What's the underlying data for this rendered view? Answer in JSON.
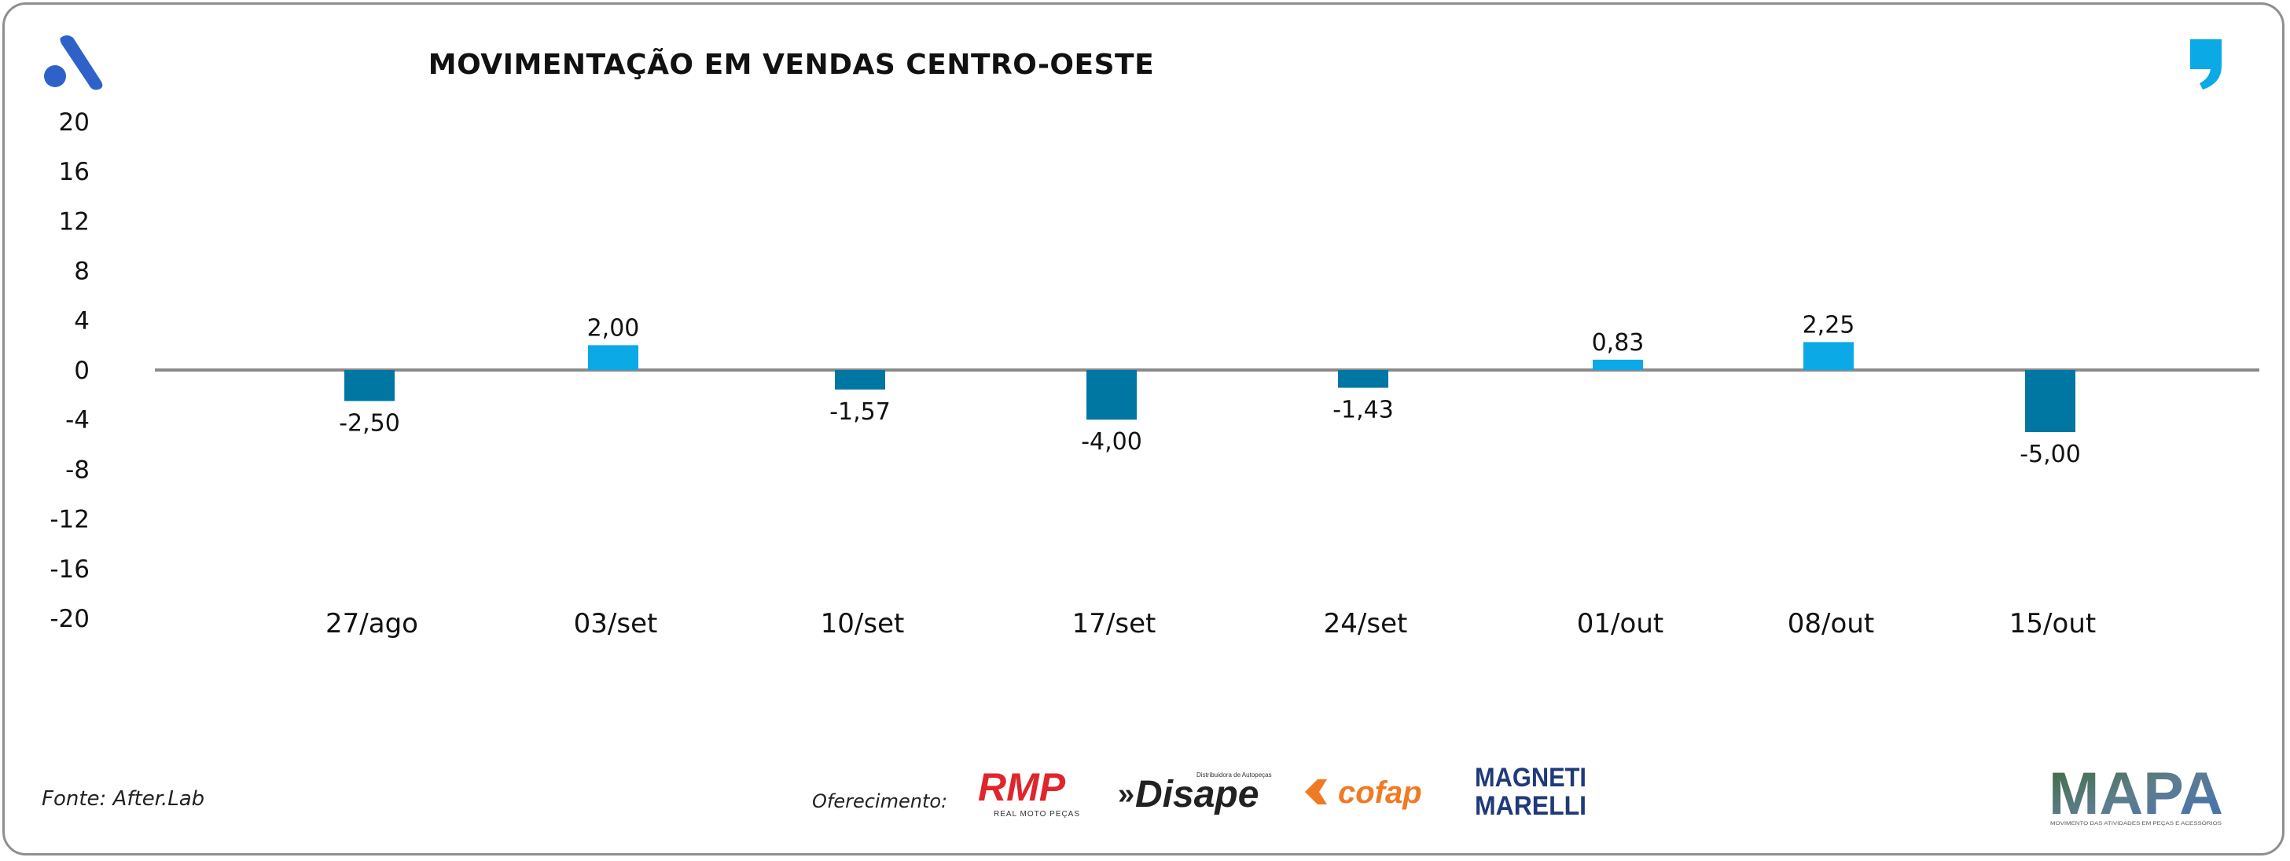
{
  "header": {
    "title": "MOVIMENTAÇÃO EM VENDAS CENTRO-OESTE"
  },
  "chart_data": {
    "type": "bar",
    "title": "MOVIMENTAÇÃO EM VENDAS CENTRO-OESTE",
    "xlabel": "",
    "ylabel": "",
    "ylim": [
      -20,
      20
    ],
    "yticks": [
      20,
      16,
      12,
      8,
      4,
      0,
      -4,
      -8,
      -12,
      -16,
      -20
    ],
    "categories": [
      "27/ago",
      "03/set",
      "10/set",
      "17/set",
      "24/set",
      "01/out",
      "08/out",
      "15/out"
    ],
    "values": [
      -2.5,
      2.0,
      -1.57,
      -4.0,
      -1.43,
      0.83,
      2.25,
      -5.0
    ],
    "data_labels": [
      "-2,50",
      "2,00",
      "-1,57",
      "-4,00",
      "-1,43",
      "0,83",
      "2,25",
      "-5,00"
    ],
    "colors": {
      "positive": "#0ba9e6",
      "negative": "#0077a3",
      "axis": "#8a8a8a"
    },
    "grid": false,
    "legend": "none"
  },
  "footer": {
    "source": "Fonte: After.Lab",
    "sponsor_label": "Oferecimento:",
    "sponsors": [
      "RMP",
      "REAL MOTO PEÇAS",
      "Disape",
      "Distribuidora de Autopeças",
      "cofap",
      "MAGNETI",
      "MARELLI"
    ],
    "brand": "MAPA",
    "brand_tagline": "MOVIMENTO DAS ATIVIDADES EM PEÇAS E ACESSÓRIOS"
  },
  "colors": {
    "accent_blue": "#2f62c9",
    "quote_blue": "#0ba9e6",
    "rmp_red": "#e0262b",
    "cofap_orange": "#f07a24",
    "marelli_navy": "#1f3a7a"
  }
}
